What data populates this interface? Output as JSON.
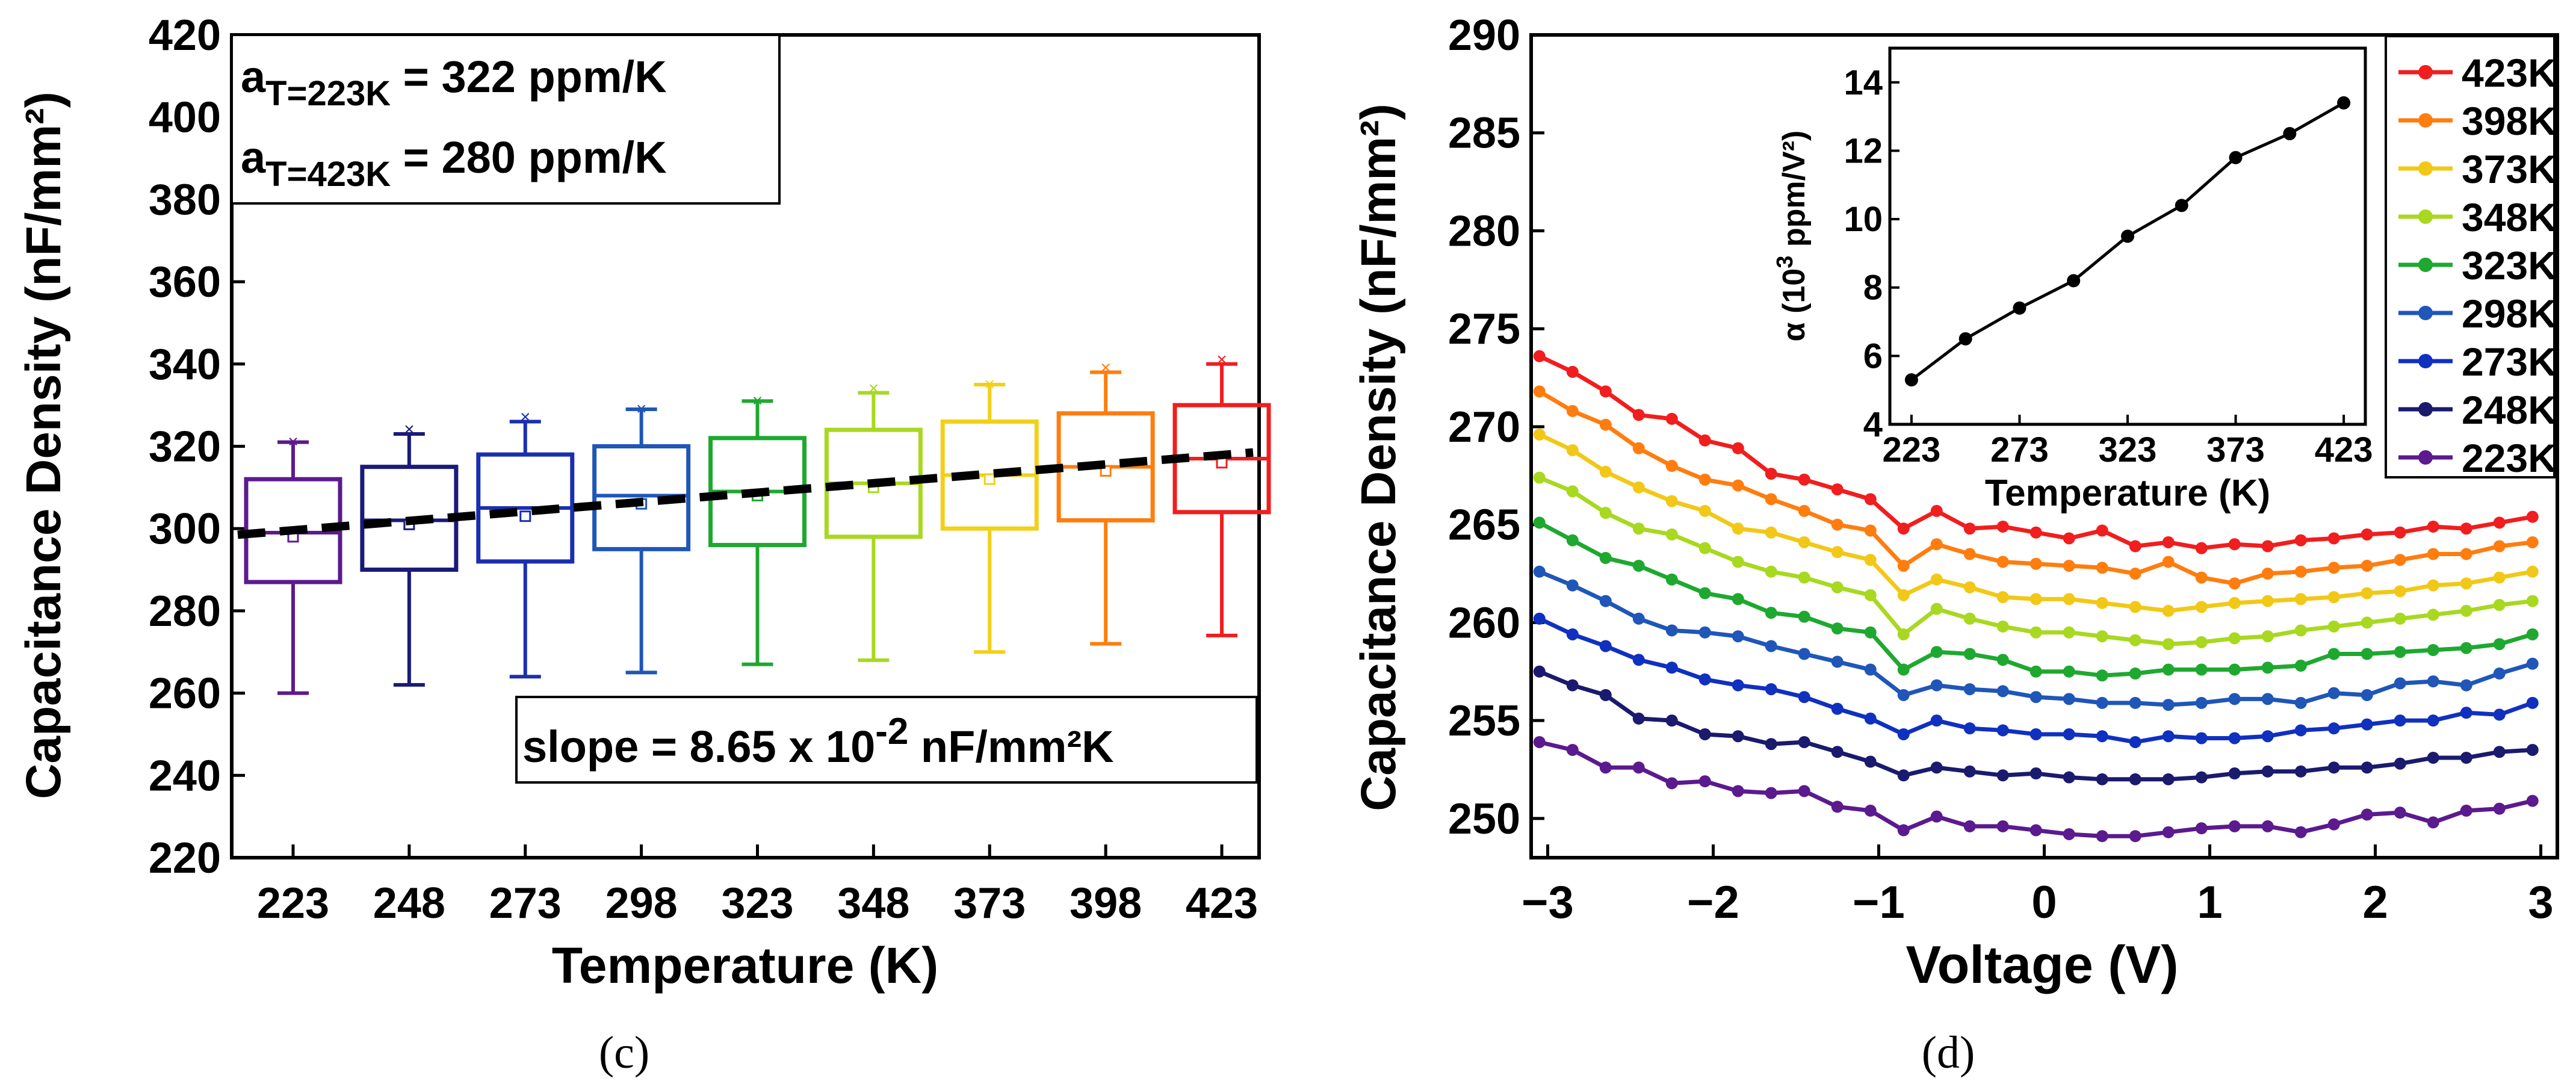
{
  "chart_data": [
    {
      "type": "box",
      "panel_label": "(c)",
      "xlabel": "Temperature (K)",
      "ylabel": "Capacitance Density (nF/mm²)",
      "ylim": [
        220,
        420
      ],
      "yticks": [
        220,
        240,
        260,
        280,
        300,
        320,
        340,
        360,
        380,
        400,
        420
      ],
      "categories": [
        "223",
        "248",
        "273",
        "298",
        "323",
        "348",
        "373",
        "398",
        "423"
      ],
      "colors": [
        "#5B1A8E",
        "#1A1A7A",
        "#1A2FB0",
        "#1F56B8",
        "#1FA830",
        "#A8D820",
        "#F2D018",
        "#FF7D0F",
        "#F01E1E"
      ],
      "boxes": [
        {
          "q1": 287,
          "median": 299,
          "q3": 312,
          "lo": 260,
          "hi": 321,
          "mean": 298,
          "max_x": 321
        },
        {
          "q1": 290,
          "median": 302,
          "q3": 315,
          "lo": 262,
          "hi": 323,
          "mean": 301,
          "max_x": 324
        },
        {
          "q1": 292,
          "median": 305,
          "q3": 318,
          "lo": 264,
          "hi": 326,
          "mean": 303,
          "max_x": 327
        },
        {
          "q1": 295,
          "median": 308,
          "q3": 320,
          "lo": 265,
          "hi": 329,
          "mean": 306,
          "max_x": 329
        },
        {
          "q1": 296,
          "median": 309,
          "q3": 322,
          "lo": 267,
          "hi": 331,
          "mean": 308,
          "max_x": 331
        },
        {
          "q1": 298,
          "median": 311,
          "q3": 324,
          "lo": 268,
          "hi": 333,
          "mean": 310,
          "max_x": 334
        },
        {
          "q1": 300,
          "median": 313,
          "q3": 326,
          "lo": 270,
          "hi": 335,
          "mean": 312,
          "max_x": 335
        },
        {
          "q1": 302,
          "median": 315,
          "q3": 328,
          "lo": 272,
          "hi": 338,
          "mean": 314,
          "max_x": 339
        },
        {
          "q1": 304,
          "median": 317,
          "q3": 330,
          "lo": 274,
          "hi": 340,
          "mean": 316,
          "max_x": 341
        }
      ],
      "fit_line": {
        "start": 298.5,
        "end": 318.5
      },
      "annotations": {
        "a1_base": "a",
        "a1_sub": "T=223K",
        "a1_rest": " = 322 ppm/K",
        "a2_base": "a",
        "a2_sub": "T=423K",
        "a2_rest": " = 280 ppm/K",
        "slope_pre": "slope = 8.65 x 10",
        "slope_exp": "-2",
        "slope_post": " nF/mm²K"
      }
    },
    {
      "type": "line",
      "panel_label": "(d)",
      "xlabel": "Voltage (V)",
      "ylabel": "Capacitance Density (nF/mm²)",
      "xlim": [
        -3.1,
        3.1
      ],
      "ylim": [
        248,
        290
      ],
      "xticks": [
        -3,
        -2,
        -1,
        0,
        1,
        2,
        3
      ],
      "yticks": [
        250,
        255,
        260,
        265,
        270,
        275,
        280,
        285,
        290
      ],
      "x": [
        -3.05,
        -2.85,
        -2.65,
        -2.45,
        -2.25,
        -2.05,
        -1.85,
        -1.65,
        -1.45,
        -1.25,
        -1.05,
        -0.85,
        -0.65,
        -0.45,
        -0.25,
        -0.05,
        0.15,
        0.35,
        0.55,
        0.75,
        0.95,
        1.15,
        1.35,
        1.55,
        1.75,
        1.95,
        2.15,
        2.35,
        2.55,
        2.75,
        2.95
      ],
      "series": [
        {
          "name": "423K",
          "color": "#F01E1E",
          "values": [
            273.6,
            272.8,
            271.8,
            270.6,
            270.4,
            269.3,
            268.9,
            267.6,
            267.3,
            266.8,
            266.3,
            264.8,
            265.7,
            264.8,
            264.9,
            264.6,
            264.3,
            264.7,
            263.9,
            264.1,
            263.8,
            264.0,
            263.9,
            264.2,
            264.3,
            264.5,
            264.6,
            264.9,
            264.8,
            265.1,
            265.4
          ]
        },
        {
          "name": "398K",
          "color": "#FF7D0F",
          "values": [
            271.8,
            270.8,
            270.1,
            268.9,
            268.0,
            267.3,
            267.0,
            266.3,
            265.7,
            265.0,
            264.7,
            262.9,
            264.0,
            263.5,
            263.1,
            263.0,
            262.9,
            262.8,
            262.5,
            263.1,
            262.3,
            262.0,
            262.5,
            262.6,
            262.8,
            262.9,
            263.2,
            263.5,
            263.5,
            263.9,
            264.1
          ]
        },
        {
          "name": "373K",
          "color": "#F2C818",
          "values": [
            269.6,
            268.8,
            267.7,
            266.9,
            266.2,
            265.7,
            264.8,
            264.6,
            264.1,
            263.6,
            263.2,
            261.4,
            262.2,
            261.8,
            261.3,
            261.2,
            261.2,
            261.0,
            260.8,
            260.6,
            260.8,
            261.0,
            261.1,
            261.2,
            261.3,
            261.5,
            261.6,
            261.9,
            262.0,
            262.3,
            262.6
          ]
        },
        {
          "name": "348K",
          "color": "#A8D820",
          "values": [
            267.4,
            266.7,
            265.6,
            264.8,
            264.5,
            263.8,
            263.1,
            262.6,
            262.3,
            261.8,
            261.4,
            259.4,
            260.7,
            260.2,
            259.8,
            259.5,
            259.5,
            259.3,
            259.1,
            258.9,
            259.0,
            259.2,
            259.3,
            259.6,
            259.8,
            260.0,
            260.2,
            260.4,
            260.6,
            260.9,
            261.1
          ]
        },
        {
          "name": "323K",
          "color": "#1FA830",
          "values": [
            265.1,
            264.2,
            263.3,
            262.9,
            262.2,
            261.5,
            261.2,
            260.5,
            260.3,
            259.7,
            259.5,
            257.6,
            258.5,
            258.4,
            258.1,
            257.5,
            257.5,
            257.3,
            257.4,
            257.6,
            257.6,
            257.6,
            257.7,
            257.8,
            258.4,
            258.4,
            258.5,
            258.6,
            258.7,
            258.9,
            259.4
          ]
        },
        {
          "name": "298K",
          "color": "#1F56B8",
          "values": [
            262.6,
            261.9,
            261.1,
            260.2,
            259.6,
            259.5,
            259.3,
            258.8,
            258.4,
            258.0,
            257.6,
            256.3,
            256.8,
            256.6,
            256.5,
            256.2,
            256.1,
            255.9,
            255.9,
            255.8,
            255.9,
            256.1,
            256.1,
            255.9,
            256.4,
            256.3,
            256.9,
            257.0,
            256.8,
            257.4,
            257.9
          ]
        },
        {
          "name": "273K",
          "color": "#1030C0",
          "values": [
            260.2,
            259.4,
            258.8,
            258.1,
            257.7,
            257.1,
            256.8,
            256.6,
            256.2,
            255.6,
            255.1,
            254.3,
            255.0,
            254.6,
            254.5,
            254.3,
            254.3,
            254.2,
            253.9,
            254.2,
            254.1,
            254.1,
            254.2,
            254.5,
            254.6,
            254.8,
            255.0,
            255.0,
            255.4,
            255.3,
            255.9
          ]
        },
        {
          "name": "248K",
          "color": "#1A1A6E",
          "values": [
            257.5,
            256.8,
            256.3,
            255.1,
            255.0,
            254.3,
            254.2,
            253.8,
            253.9,
            253.4,
            252.9,
            252.2,
            252.6,
            252.4,
            252.2,
            252.3,
            252.1,
            252.0,
            252.0,
            252.0,
            252.1,
            252.3,
            252.4,
            252.4,
            252.6,
            252.6,
            252.8,
            253.1,
            253.1,
            253.4,
            253.5
          ]
        },
        {
          "name": "223K",
          "color": "#5B1A8E",
          "values": [
            253.9,
            253.5,
            252.6,
            252.6,
            251.8,
            251.9,
            251.4,
            251.3,
            251.4,
            250.6,
            250.4,
            249.4,
            250.1,
            249.6,
            249.6,
            249.4,
            249.2,
            249.1,
            249.1,
            249.3,
            249.5,
            249.6,
            249.6,
            249.3,
            249.7,
            250.2,
            250.3,
            249.8,
            250.4,
            250.5,
            250.9
          ]
        }
      ],
      "inset": {
        "type": "line",
        "xlabel": "Temperature (K)",
        "ylabel_pre": "α (10",
        "ylabel_exp": "3",
        "ylabel_post": " ppm/V²)",
        "xlim": [
          213,
          433
        ],
        "ylim": [
          4,
          15
        ],
        "xticks": [
          223,
          273,
          323,
          373,
          423
        ],
        "yticks": [
          4,
          6,
          8,
          10,
          12,
          14
        ],
        "x": [
          223,
          248,
          273,
          298,
          323,
          348,
          373,
          398,
          423
        ],
        "values": [
          5.3,
          6.5,
          7.4,
          8.2,
          9.5,
          10.4,
          11.8,
          12.5,
          13.4
        ],
        "color": "#000000"
      }
    }
  ]
}
